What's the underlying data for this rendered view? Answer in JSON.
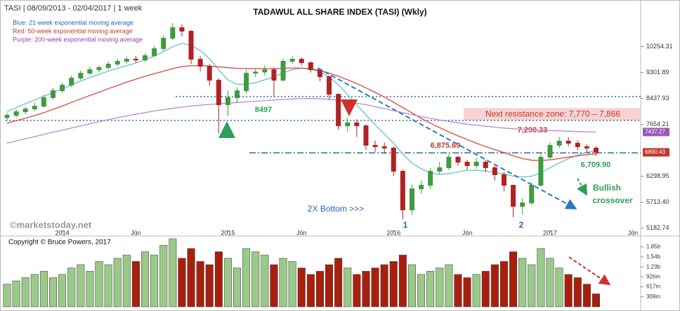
{
  "header": "TASI | 08/09/2013 - 02/04/2017 | 1 week",
  "chart_data": {
    "type": "candlestick",
    "title": "TADAWUL ALL SHARE INDEX (TASI) (Wkly)",
    "categories": [
      null,
      null,
      null,
      null,
      null,
      null,
      "2014",
      null,
      null,
      null,
      null,
      null,
      null,
      null,
      "Jun",
      null,
      null,
      null,
      null,
      null,
      null,
      null,
      null,
      null,
      "2015",
      null,
      null,
      null,
      null,
      null,
      null,
      null,
      "Jun",
      null,
      null,
      null,
      null,
      null,
      null,
      null,
      null,
      null,
      "2016",
      null,
      null,
      null,
      null,
      null,
      null,
      null,
      "Jun",
      null,
      null,
      null,
      null,
      null,
      null,
      null,
      null,
      "2017",
      null,
      null,
      null,
      null,
      null,
      null,
      null,
      null,
      "Jun",
      null
    ],
    "open": [
      7850,
      7920,
      8026,
      8111,
      8196,
      8462,
      8686,
      8871,
      9108,
      9278,
      9401,
      9476,
      9601,
      9703,
      9780,
      9750,
      9909,
      10173,
      10582,
      11010,
      10866,
      9780,
      9526,
      9037,
      8239,
      8462,
      8686,
      9278,
      9320,
      9401,
      9037,
      9703,
      9780,
      9651,
      9401,
      9156,
      8572,
      7613,
      7700,
      7613,
      7075,
      7038,
      7001,
      6417,
      5549,
      6007,
      6087,
      6417,
      6503,
      6765,
      6641,
      6554,
      6641,
      6503,
      6333,
      6087,
      5622,
      5697,
      6087,
      6765,
      7075,
      7187,
      7131,
      7038,
      7001,
      null,
      null,
      null,
      null,
      null
    ],
    "high": [
      8000,
      8100,
      8180,
      8300,
      8550,
      8780,
      8950,
      9200,
      9380,
      9500,
      9560,
      9700,
      9800,
      9880,
      9900,
      10000,
      10280,
      10700,
      11200,
      11150,
      10900,
      9900,
      9600,
      9100,
      8700,
      8800,
      9400,
      9450,
      9550,
      9480,
      9800,
      9900,
      9850,
      9700,
      9450,
      9200,
      8600,
      7850,
      7800,
      7650,
      7200,
      7150,
      7050,
      6450,
      6100,
      6200,
      6500,
      6650,
      6850,
      6800,
      6700,
      6750,
      6700,
      6550,
      6400,
      6100,
      5800,
      6150,
      6850,
      7150,
      7300,
      7290,
      7200,
      7100,
      7050,
      null,
      null,
      null,
      null,
      null
    ],
    "low": [
      7750,
      7850,
      7950,
      8050,
      8150,
      8400,
      8620,
      8800,
      9050,
      9200,
      9300,
      9400,
      9520,
      9620,
      9650,
      9680,
      9850,
      10100,
      10500,
      10650,
      9600,
      9350,
      8850,
      7400,
      7900,
      8300,
      8600,
      9150,
      9200,
      8500,
      9000,
      9600,
      9550,
      9300,
      9000,
      8400,
      7500,
      7450,
      7300,
      6950,
      6900,
      6850,
      6300,
      5350,
      5450,
      5900,
      6000,
      6350,
      6450,
      6550,
      6450,
      6480,
      6400,
      6200,
      5950,
      5400,
      5450,
      5650,
      6050,
      6700,
      7000,
      7050,
      6950,
      6880,
      6800,
      null,
      null,
      null,
      null,
      null
    ],
    "close": [
      7920,
      8026,
      8111,
      8196,
      8462,
      8686,
      8871,
      9108,
      9278,
      9401,
      9476,
      9601,
      9703,
      9780,
      9750,
      9909,
      10173,
      10582,
      11010,
      10866,
      9780,
      9526,
      9037,
      8239,
      8462,
      8686,
      9278,
      9320,
      9401,
      9037,
      9703,
      9780,
      9651,
      9401,
      9156,
      8572,
      7613,
      7700,
      7613,
      7075,
      7038,
      7001,
      6417,
      5549,
      6007,
      6087,
      6417,
      6503,
      6765,
      6641,
      6554,
      6641,
      6503,
      6333,
      6087,
      5622,
      5697,
      6087,
      6765,
      7075,
      7187,
      7131,
      7038,
      7001,
      6890.43,
      null,
      null,
      null,
      null,
      null
    ],
    "up_color": "#3f9b3f",
    "down_color": "#b22222",
    "series": [
      {
        "name": "Blue: 21-week exponential moving average",
        "color": "#5bc4cc",
        "label_color": "#2a64b8",
        "values": [
          8030,
          8150,
          8270,
          8390,
          8510,
          8630,
          8750,
          8880,
          9010,
          9130,
          9240,
          9350,
          9450,
          9540,
          9640,
          9760,
          9900,
          10060,
          10250,
          10380,
          10300,
          10100,
          9800,
          9400,
          9050,
          8900,
          8900,
          8950,
          9050,
          9150,
          9300,
          9400,
          9450,
          9420,
          9330,
          9150,
          8880,
          8560,
          8240,
          7930,
          7640,
          7380,
          7130,
          6840,
          6620,
          6480,
          6380,
          6340,
          6360,
          6400,
          6440,
          6440,
          6420,
          6390,
          6350,
          6300,
          6280,
          6300,
          6380,
          6500,
          6620,
          6730,
          6820,
          6890,
          6940,
          null,
          null,
          null,
          null,
          null
        ]
      },
      {
        "name": "Red: 50-week exponential moving average",
        "color": "#e0453a",
        "label_color": "#c0392b",
        "values": [
          7690,
          7760,
          7830,
          7910,
          8000,
          8100,
          8200,
          8310,
          8420,
          8530,
          8640,
          8750,
          8860,
          8970,
          9070,
          9170,
          9260,
          9350,
          9440,
          9510,
          9540,
          9550,
          9530,
          9500,
          9470,
          9450,
          9440,
          9440,
          9440,
          9440,
          9450,
          9460,
          9460,
          9430,
          9370,
          9280,
          9170,
          9050,
          8920,
          8780,
          8630,
          8480,
          8320,
          8150,
          7990,
          7830,
          7690,
          7560,
          7440,
          7330,
          7230,
          7130,
          7040,
          6960,
          6880,
          6800,
          6730,
          6690,
          6680,
          6700,
          6730,
          6770,
          6800,
          6830,
          6850,
          null,
          null,
          null,
          null,
          null
        ]
      },
      {
        "name": "Purple: 200-week exponential moving average",
        "color": "#b48ad6",
        "label_color": "#8e44ad",
        "values": [
          7130,
          7190,
          7250,
          7310,
          7370,
          7430,
          7490,
          7550,
          7610,
          7670,
          7730,
          7790,
          7850,
          7900,
          7950,
          8000,
          8050,
          8090,
          8130,
          8170,
          8200,
          8225,
          8250,
          8270,
          8290,
          8310,
          8330,
          8350,
          8370,
          8390,
          8405,
          8420,
          8430,
          8435,
          8430,
          8410,
          8380,
          8340,
          8290,
          8240,
          8180,
          8120,
          8060,
          8000,
          7940,
          7880,
          7830,
          7780,
          7740,
          7700,
          7660,
          7630,
          7600,
          7575,
          7550,
          7530,
          7510,
          7500,
          7490,
          7480,
          7470,
          7460,
          7450,
          7445,
          7437,
          null,
          null,
          null,
          null,
          null
        ]
      }
    ],
    "log_scale": true,
    "ylim": [
      5150,
      11900
    ],
    "yticks": [
      10254.31,
      9301.89,
      8437.93,
      7654.21,
      6298.95,
      {
        "value": 5713.4,
        "label": "5713.40"
      },
      5182.74
    ],
    "levels": [
      {
        "value": 8497,
        "label": "8497"
      },
      {
        "value": 6875.69,
        "label": "6,875.69"
      }
    ],
    "resistance_zone": {
      "label": "Next resistance zone: 7,770  – 7,866",
      "low": 7770,
      "high": 7866
    },
    "point_labels": [
      {
        "value": 7290.33,
        "label": "7,290.33"
      },
      {
        "value": 6709.9,
        "label": "6,709.90"
      }
    ],
    "last_labels": [
      {
        "value": 7437.27,
        "color": "#9b59b6"
      },
      {
        "value": 6890.43,
        "color": "#c0392b"
      }
    ],
    "annotations": {
      "bottoms": "2X Bottom >>>",
      "first": "1",
      "second": "2",
      "crossover": [
        "Bullish",
        "crossover"
      ]
    },
    "watermark": "©marketstoday.net",
    "volume": {
      "copyright": "Copyright © Bruce Powers, 2017",
      "up_color": "#9bc98a",
      "down_color": "#a8200d",
      "ylim": [
        0,
        2120000000
      ],
      "yticks": [
        {
          "value": 309000000,
          "label": "309m"
        },
        {
          "value": 617000000,
          "label": "617m"
        },
        {
          "value": 926000000,
          "label": "926m"
        },
        {
          "value": 1230000000,
          "label": "1.23b"
        },
        {
          "value": 1540000000,
          "label": "1.54b"
        },
        {
          "value": 1850000000,
          "label": "1.85b"
        }
      ],
      "values": [
        700000000,
        800000000,
        900000000,
        1000000000,
        1100000000,
        900000000,
        1000000000,
        1200000000,
        1300000000,
        1100000000,
        1400000000,
        1300000000,
        1500000000,
        1600000000,
        1400000000,
        1700000000,
        1600000000,
        1900000000,
        2100000000,
        1500000000,
        1800000000,
        1400000000,
        1300000000,
        1700000000,
        1500000000,
        1200000000,
        1800000000,
        1700000000,
        1600000000,
        1300000000,
        1500000000,
        1400000000,
        1200000000,
        1000000000,
        1100000000,
        1300000000,
        1500000000,
        1200000000,
        1000000000,
        1100000000,
        1200000000,
        1300000000,
        1400000000,
        1600000000,
        1300000000,
        1000000000,
        1100000000,
        1200000000,
        1300000000,
        1000000000,
        900000000,
        1000000000,
        1100000000,
        1300000000,
        1400000000,
        1700000000,
        1500000000,
        1300000000,
        1800000000,
        1500000000,
        1200000000,
        1000000000,
        900000000,
        700000000,
        400000000,
        null,
        null,
        null,
        null,
        null
      ]
    }
  }
}
